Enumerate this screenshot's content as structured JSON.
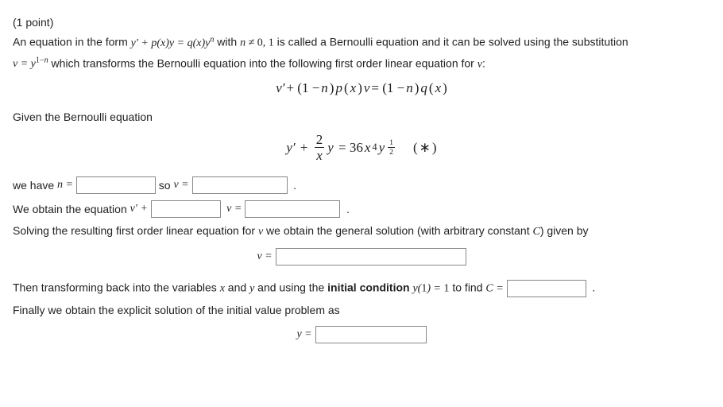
{
  "points": "(1 point)",
  "intro1_a": "An equation in the form ",
  "intro1_b": " with ",
  "intro1_c": " is called a Bernoulli equation and it can be solved using the substitution",
  "intro2_a": " which transforms the Bernoulli equation into the following first order linear equation for ",
  "eq_form": "y′ + p(x)y = q(x)yⁿ",
  "eq_n": "n ≠ 0, 1",
  "eq_sub": "v = y¹⁻ⁿ",
  "eq_v": "v",
  "eq_transformed": "v′ + (1 − n)p(x)v = (1 − n)q(x)",
  "given": "Given the Bernoulli equation",
  "star": "(*)",
  "we_have": "we have ",
  "n_eq": "n =",
  "so": " so ",
  "v_eq": "v =",
  "obtain": "We obtain the equation ",
  "vprime_plus": "v′ +",
  "solving": "Solving the resulting first order linear equation for ",
  "solving_b": " we obtain the general solution (with arbitrary constant ",
  "C": "C",
  "solving_c": ") given by",
  "then_a": "Then transforming back into the variables ",
  "x": "x",
  "and": " and ",
  "y": "y",
  "then_b": " and using the ",
  "ic_label": "initial condition ",
  "ic": "y(1) = 1",
  "to_find": " to find ",
  "C_eq": "C =",
  "finally": "Finally we obtain the explicit solution of the initial value problem as",
  "y_eq": "y =",
  "period": ".",
  "colon": ":"
}
